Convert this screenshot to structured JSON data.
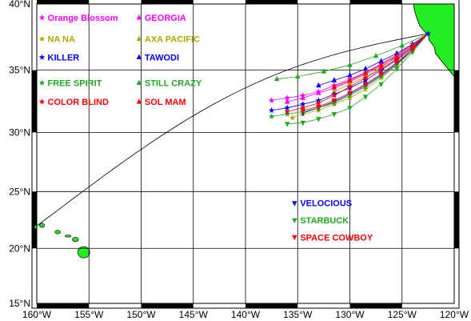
{
  "map": {
    "projection": "mercator",
    "lon_range": [
      -160,
      -120
    ],
    "lat_range": [
      15,
      40
    ],
    "x_ticks": [
      {
        "lon": -160,
        "label": "160°W"
      },
      {
        "lon": -155,
        "label": "155°W"
      },
      {
        "lon": -150,
        "label": "150°W"
      },
      {
        "lon": -145,
        "label": "145°W"
      },
      {
        "lon": -140,
        "label": "140°W"
      },
      {
        "lon": -135,
        "label": "135°W"
      },
      {
        "lon": -130,
        "label": "130°W"
      },
      {
        "lon": -125,
        "label": "125°W"
      },
      {
        "lon": -120,
        "label": "120°W"
      }
    ],
    "y_ticks": [
      {
        "lat": 40,
        "label": "40°N"
      },
      {
        "lat": 35,
        "label": "35°N"
      },
      {
        "lat": 30,
        "label": "30°N"
      },
      {
        "lat": 25,
        "label": "25°N"
      },
      {
        "lat": 20,
        "label": "20°N"
      },
      {
        "lat": 15,
        "label": "15°N"
      }
    ],
    "grid": true,
    "land_color": "#22ee22",
    "start_point": {
      "lon": -122.5,
      "lat": 37.8
    },
    "great_circle_end": {
      "lon": -160,
      "lat": 22
    },
    "legend": [
      {
        "label": "Orange Blossom",
        "color": "#ff00ff",
        "marker": "star",
        "lon": -159.5,
        "lat": 39.0
      },
      {
        "label": "NA NA",
        "color": "#aaaa00",
        "marker": "star",
        "lon": -159.5,
        "lat": 37.4
      },
      {
        "label": "KILLER",
        "color": "#0000ff",
        "marker": "star",
        "lon": -159.5,
        "lat": 36.0
      },
      {
        "label": "FREE SPIRIT",
        "color": "#22aa22",
        "marker": "star",
        "lon": -159.5,
        "lat": 34.0
      },
      {
        "label": "COLOR BLIND",
        "color": "#ff0000",
        "marker": "star",
        "lon": -159.5,
        "lat": 32.5
      },
      {
        "label": "GEORGIA",
        "color": "#ff00ff",
        "marker": "up",
        "lon": -150.2,
        "lat": 39.0
      },
      {
        "label": "AXA PACIFIC",
        "color": "#aaaa00",
        "marker": "up",
        "lon": -150.2,
        "lat": 37.4
      },
      {
        "label": "TAWODI",
        "color": "#0000ff",
        "marker": "up",
        "lon": -150.2,
        "lat": 36.0
      },
      {
        "label": "STILL CRAZY",
        "color": "#22aa22",
        "marker": "up",
        "lon": -150.2,
        "lat": 34.0
      },
      {
        "label": "SOL MAM",
        "color": "#ff0000",
        "marker": "up",
        "lon": -150.2,
        "lat": 32.5
      },
      {
        "label": "VELOCIOUS",
        "color": "#0000ff",
        "marker": "down",
        "lon": -135.3,
        "lat": 24.0
      },
      {
        "label": "STARBUCK",
        "color": "#22aa22",
        "marker": "down",
        "lon": -135.3,
        "lat": 22.5
      },
      {
        "label": "SPACE COWBOY",
        "color": "#ff0000",
        "marker": "down",
        "lon": -135.3,
        "lat": 21.0
      }
    ],
    "tracks": [
      {
        "color": "#ff00ff",
        "marker": "star",
        "points": [
          [
            -122.5,
            37.8
          ],
          [
            -124,
            37.0
          ],
          [
            -125.5,
            36.2
          ],
          [
            -127,
            35.5
          ],
          [
            -128.5,
            34.8
          ],
          [
            -130,
            34.3
          ],
          [
            -131.5,
            33.8
          ],
          [
            -133,
            33.3
          ],
          [
            -134.5,
            33.0
          ],
          [
            -136,
            32.8
          ],
          [
            -137.5,
            32.6
          ]
        ]
      },
      {
        "color": "#ff00ff",
        "marker": "up",
        "points": [
          [
            -122.5,
            37.8
          ],
          [
            -124,
            36.8
          ],
          [
            -125.5,
            36.0
          ],
          [
            -127,
            35.3
          ],
          [
            -128.5,
            34.7
          ],
          [
            -130,
            34.1
          ],
          [
            -131.5,
            33.6
          ],
          [
            -133,
            33.2
          ],
          [
            -134.5,
            32.8
          ],
          [
            -136,
            32.5
          ]
        ]
      },
      {
        "color": "#aaaa00",
        "marker": "star",
        "points": [
          [
            -122.5,
            37.8
          ],
          [
            -124,
            36.6
          ],
          [
            -125.5,
            35.4
          ],
          [
            -127,
            34.4
          ],
          [
            -128.5,
            33.5
          ],
          [
            -130,
            32.8
          ],
          [
            -131.5,
            32.3
          ],
          [
            -133,
            31.8
          ],
          [
            -134.5,
            31.5
          ],
          [
            -135.5,
            31.2
          ]
        ]
      },
      {
        "color": "#aaaa00",
        "marker": "up",
        "points": [
          [
            -122.5,
            37.8
          ],
          [
            -124,
            36.9
          ],
          [
            -125.5,
            36.1
          ],
          [
            -127,
            35.2
          ],
          [
            -128.5,
            34.5
          ],
          [
            -130,
            33.9
          ],
          [
            -131.5,
            33.3
          ]
        ]
      },
      {
        "color": "#0000ff",
        "marker": "star",
        "points": [
          [
            -122.5,
            37.8
          ],
          [
            -124,
            36.7
          ],
          [
            -125.5,
            35.8
          ],
          [
            -127,
            35.0
          ],
          [
            -128.5,
            34.2
          ],
          [
            -130,
            33.6
          ],
          [
            -131.5,
            33.1
          ],
          [
            -133,
            32.6
          ],
          [
            -134.5,
            32.3
          ],
          [
            -136,
            32.0
          ],
          [
            -137.5,
            31.8
          ]
        ]
      },
      {
        "color": "#0000ff",
        "marker": "up",
        "points": [
          [
            -122.5,
            37.8
          ],
          [
            -124,
            37.0
          ],
          [
            -125.5,
            36.3
          ],
          [
            -127,
            35.7
          ],
          [
            -128.5,
            35.1
          ],
          [
            -130,
            34.6
          ],
          [
            -131.5,
            34.2
          ],
          [
            -133,
            33.8
          ]
        ]
      },
      {
        "color": "#0000ff",
        "marker": "down",
        "points": [
          [
            -122.5,
            37.8
          ],
          [
            -124,
            36.6
          ],
          [
            -125.5,
            35.5
          ],
          [
            -127,
            34.6
          ],
          [
            -128.5,
            33.8
          ],
          [
            -130,
            33.1
          ],
          [
            -131.5,
            32.5
          ],
          [
            -133,
            32.0
          ],
          [
            -134.5,
            31.6
          ]
        ]
      },
      {
        "color": "#22aa22",
        "marker": "star",
        "points": [
          [
            -122.5,
            37.8
          ],
          [
            -124,
            36.5
          ],
          [
            -125.5,
            35.4
          ],
          [
            -127,
            34.5
          ],
          [
            -128.5,
            33.7
          ],
          [
            -130,
            33.0
          ],
          [
            -131.5,
            32.4
          ],
          [
            -133,
            32.0
          ],
          [
            -134.5,
            31.7
          ],
          [
            -136,
            31.5
          ],
          [
            -137.5,
            31.3
          ]
        ]
      },
      {
        "color": "#22aa22",
        "marker": "up",
        "points": [
          [
            -122.5,
            37.8
          ],
          [
            -125,
            36.9
          ],
          [
            -127.5,
            36.1
          ],
          [
            -130,
            35.4
          ],
          [
            -132.5,
            34.9
          ],
          [
            -135,
            34.5
          ],
          [
            -137,
            34.3
          ]
        ]
      },
      {
        "color": "#22aa22",
        "marker": "down",
        "points": [
          [
            -122.5,
            37.8
          ],
          [
            -124,
            36.4
          ],
          [
            -125.5,
            35.1
          ],
          [
            -127,
            33.9
          ],
          [
            -128.5,
            32.9
          ],
          [
            -130,
            32.0
          ],
          [
            -131.5,
            31.5
          ],
          [
            -133,
            31.1
          ],
          [
            -134.5,
            30.8
          ],
          [
            -136,
            30.7
          ]
        ]
      },
      {
        "color": "#ff0000",
        "marker": "star",
        "points": [
          [
            -122.5,
            37.8
          ],
          [
            -124,
            36.8
          ],
          [
            -125.5,
            35.9
          ],
          [
            -127,
            35.1
          ],
          [
            -128.5,
            34.4
          ],
          [
            -130,
            33.7
          ],
          [
            -131.5,
            33.0
          ],
          [
            -133,
            32.4
          ],
          [
            -134.5,
            32.0
          ],
          [
            -136,
            31.7
          ]
        ]
      },
      {
        "color": "#ff0000",
        "marker": "up",
        "points": [
          [
            -122.5,
            37.8
          ],
          [
            -124,
            36.9
          ],
          [
            -125.5,
            36.1
          ],
          [
            -127,
            35.4
          ],
          [
            -128.5,
            34.8
          ],
          [
            -130,
            34.2
          ],
          [
            -131.5,
            33.7
          ]
        ]
      },
      {
        "color": "#ff0000",
        "marker": "down",
        "points": [
          [
            -122.5,
            37.8
          ],
          [
            -124,
            36.6
          ],
          [
            -125.5,
            35.6
          ],
          [
            -127,
            34.7
          ],
          [
            -128.5,
            33.9
          ],
          [
            -130,
            33.2
          ],
          [
            -131.5,
            32.6
          ],
          [
            -133,
            32.1
          ],
          [
            -134.5,
            31.8
          ]
        ]
      }
    ]
  }
}
